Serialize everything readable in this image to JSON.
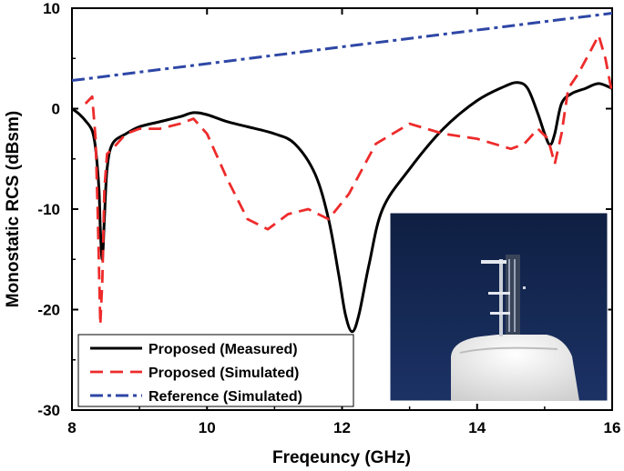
{
  "chart_data": {
    "type": "line",
    "xlabel": "Freqeuncy (GHz)",
    "ylabel": "Monostatic RCS (dBsm)",
    "xlim": [
      8,
      16
    ],
    "ylim": [
      -30,
      10
    ],
    "xticks": [
      "8",
      "10",
      "12",
      "14",
      "16"
    ],
    "yticks": [
      "10",
      "0",
      "-10",
      "-20",
      "-30"
    ],
    "xtick_values": [
      8,
      10,
      12,
      14,
      16
    ],
    "ytick_values": [
      10,
      0,
      -10,
      -20,
      -30
    ],
    "legend_position": "bottom-left",
    "inset": "photo of the fabricated sample mounted on a white foam support, dark blue background",
    "series": [
      {
        "name": "Proposed (Measured)",
        "color": "#000000",
        "style": "solid",
        "x": [
          8.0,
          8.1,
          8.2,
          8.3,
          8.35,
          8.4,
          8.42,
          8.45,
          8.48,
          8.52,
          8.6,
          8.8,
          9.0,
          9.3,
          9.6,
          9.8,
          10.0,
          10.3,
          10.6,
          11.0,
          11.3,
          11.6,
          11.8,
          11.95,
          12.05,
          12.15,
          12.25,
          12.4,
          12.6,
          13.0,
          13.5,
          14.0,
          14.4,
          14.6,
          14.75,
          14.9,
          15.0,
          15.08,
          15.15,
          15.25,
          15.4,
          15.6,
          15.8,
          16.0
        ],
        "y": [
          0.0,
          -0.5,
          -1.2,
          -2.2,
          -4.0,
          -8.0,
          -12.0,
          -15.0,
          -11.0,
          -6.0,
          -3.5,
          -2.5,
          -1.8,
          -1.3,
          -0.8,
          -0.4,
          -0.6,
          -1.3,
          -1.8,
          -2.5,
          -3.5,
          -6.5,
          -11.0,
          -16.5,
          -20.5,
          -22.2,
          -20.5,
          -15.5,
          -10.0,
          -6.0,
          -2.0,
          0.8,
          2.2,
          2.6,
          2.0,
          -0.5,
          -2.5,
          -3.6,
          -2.5,
          0.5,
          1.5,
          2.0,
          2.5,
          2.0
        ]
      },
      {
        "name": "Proposed (Simulated)",
        "color": "#ee2b2b",
        "style": "dashed",
        "x": [
          8.2,
          8.3,
          8.35,
          8.38,
          8.42,
          8.45,
          8.48,
          8.52,
          8.6,
          8.8,
          9.0,
          9.3,
          9.6,
          9.8,
          10.0,
          10.3,
          10.6,
          10.9,
          11.2,
          11.5,
          11.8,
          12.1,
          12.5,
          13.0,
          13.5,
          14.0,
          14.5,
          14.7,
          14.9,
          15.05,
          15.15,
          15.25,
          15.35,
          15.5,
          15.7,
          15.8,
          15.9,
          16.0
        ],
        "y": [
          0.5,
          1.2,
          -3.0,
          -10.0,
          -21.5,
          -17.0,
          -8.0,
          -4.5,
          -4.0,
          -2.5,
          -2.0,
          -2.0,
          -1.5,
          -1.0,
          -2.5,
          -7.0,
          -11.0,
          -12.0,
          -10.5,
          -10.0,
          -11.0,
          -8.5,
          -3.5,
          -1.5,
          -2.5,
          -3.0,
          -4.0,
          -3.5,
          -2.0,
          -3.0,
          -5.5,
          -2.5,
          2.0,
          3.5,
          6.0,
          7.3,
          5.0,
          1.5
        ]
      },
      {
        "name": "Reference (Simulated)",
        "color": "#2e47a6",
        "style": "dashdot",
        "x": [
          8.0,
          16.0
        ],
        "y": [
          2.8,
          9.5
        ]
      }
    ]
  }
}
